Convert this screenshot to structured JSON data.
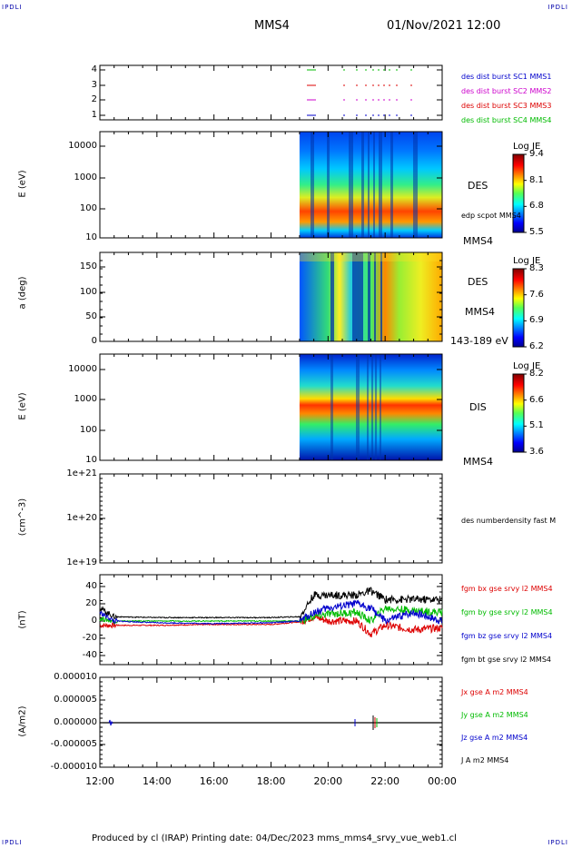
{
  "corner_labels": {
    "left_top": "IPDLI",
    "right_top": "IPDLI",
    "left_bottom": "IPDLI",
    "right_bottom": "IPDLI"
  },
  "header": {
    "spacecraft": "MMS4",
    "datetime": "01/Nov/2021 12:00"
  },
  "footer": {
    "text": "Produced by cl (IRAP)   Printing date: 04/Dec/2023   mms_mms4_srvy_vue_web1.cl"
  },
  "time_axis": {
    "ticks": [
      "12:00",
      "14:00",
      "16:00",
      "18:00",
      "20:00",
      "22:00",
      "00:00"
    ]
  },
  "panels": {
    "burst": {
      "yticks": [
        "4",
        "3",
        "2",
        "1"
      ],
      "labels": [
        {
          "text": "des dist burst SC1 MMS1",
          "color": "#0000cc"
        },
        {
          "text": "des dist burst SC2 MMS2",
          "color": "#cc00cc"
        },
        {
          "text": "des dist burst SC3 MMS3",
          "color": "#dd0000"
        },
        {
          "text": "des dist burst SC4 MMS4",
          "color": "#00bb00"
        }
      ]
    },
    "des_energy": {
      "ylabel": "E (eV)",
      "yticks": [
        "10000",
        "1000",
        "100",
        "10"
      ],
      "name": "DES",
      "sc": "MMS4",
      "overlay": "edp scpot MMS4",
      "cb": {
        "title": "Log JE",
        "ticks": [
          "9.4",
          "8.1",
          "6.8",
          "5.5"
        ]
      }
    },
    "des_pitch": {
      "ylabel": "a (deg)",
      "yticks": [
        "150",
        "100",
        "50",
        "0"
      ],
      "name": "DES",
      "sc": "MMS4",
      "range": "143-189 eV",
      "cb": {
        "title": "Log JE",
        "ticks": [
          "8.3",
          "7.6",
          "6.9",
          "6.2"
        ]
      }
    },
    "dis_energy": {
      "ylabel": "E (eV)",
      "yticks": [
        "10000",
        "1000",
        "100",
        "10"
      ],
      "name": "DIS",
      "sc": "MMS4",
      "cb": {
        "title": "Log JE",
        "ticks": [
          "8.2",
          "6.6",
          "5.1",
          "3.6"
        ]
      }
    },
    "density": {
      "ylabel": "(cm^-3)",
      "yticks": [
        "1e+21",
        "1e+20",
        "1e+19"
      ],
      "label": "des numberdensity fast M"
    },
    "bfield": {
      "ylabel": "(nT)",
      "yticks": [
        "40",
        "20",
        "0",
        "-20",
        "-40"
      ],
      "labels": [
        {
          "text": "fgm bx gse srvy l2 MMS4",
          "color": "#dd0000"
        },
        {
          "text": "fgm by gse srvy l2 MMS4",
          "color": "#00bb00"
        },
        {
          "text": "fgm bz gse srvy l2 MMS4",
          "color": "#0000cc"
        },
        {
          "text": "fgm bt gse srvy l2 MMS4",
          "color": "#000000"
        }
      ]
    },
    "current": {
      "ylabel": "(A/m2)",
      "yticks": [
        "0.000010",
        "0.000005",
        "0.000000",
        "-0.000005",
        "-0.000010"
      ],
      "labels": [
        {
          "text": "Jx gse A m2 MMS4",
          "color": "#dd0000"
        },
        {
          "text": "Jy gse A m2 MMS4",
          "color": "#00bb00"
        },
        {
          "text": "Jz gse A m2 MMS4",
          "color": "#0000cc"
        },
        {
          "text": "J A m2 MMS4",
          "color": "#000000"
        }
      ]
    }
  },
  "chart_data": [
    {
      "type": "scatter",
      "title": "des dist burst",
      "y_categories": [
        "1",
        "2",
        "3",
        "4"
      ],
      "x_range": [
        "19:10",
        "22:50"
      ],
      "ylim": [
        0.5,
        4.5
      ]
    },
    {
      "type": "heatmap",
      "ylabel": "E (eV)",
      "yscale": "log",
      "ylim": [
        10,
        30000
      ],
      "x_range": [
        "19:00",
        "00:00"
      ],
      "colorbar": "Log JE",
      "cbar_range": [
        5.5,
        9.4
      ],
      "peak_energy_eV": 60
    },
    {
      "type": "heatmap",
      "ylabel": "a (deg)",
      "ylim": [
        0,
        180
      ],
      "x_range": [
        "19:00",
        "00:00"
      ],
      "colorbar": "Log JE",
      "cbar_range": [
        6.2,
        8.3
      ]
    },
    {
      "type": "heatmap",
      "ylabel": "E (eV)",
      "yscale": "log",
      "ylim": [
        10,
        30000
      ],
      "x_range": [
        "19:00",
        "00:00"
      ],
      "colorbar": "Log JE",
      "cbar_range": [
        3.6,
        8.2
      ],
      "peak_energy_eV": 700
    },
    {
      "type": "line",
      "ylabel": "(cm^-3)",
      "yscale": "log",
      "ylim": [
        1e+19,
        1e+21
      ],
      "series": []
    },
    {
      "type": "line",
      "ylabel": "(nT)",
      "ylim": [
        -50,
        50
      ],
      "x": [
        "12:00",
        "12:30",
        "14:00",
        "16:00",
        "18:00",
        "19:00",
        "19:30",
        "20:00",
        "21:00",
        "21:30",
        "22:00",
        "23:00",
        "00:00"
      ],
      "series": [
        {
          "name": "fgm bx gse srvy l2 MMS4",
          "values": [
            -5,
            -5,
            -5,
            -4,
            -4,
            -1,
            5,
            0,
            0,
            -15,
            -5,
            -10,
            -8
          ]
        },
        {
          "name": "fgm by gse srvy l2 MMS4",
          "values": [
            3,
            0,
            0,
            0,
            0,
            0,
            5,
            8,
            10,
            0,
            15,
            12,
            10
          ]
        },
        {
          "name": "fgm bz gse srvy l2 MMS4",
          "values": [
            10,
            0,
            -2,
            -3,
            -2,
            0,
            10,
            15,
            20,
            15,
            0,
            10,
            0
          ]
        },
        {
          "name": "fgm bt gse srvy l2 MMS4",
          "values": [
            15,
            5,
            4,
            4,
            4,
            5,
            30,
            30,
            30,
            35,
            25,
            25,
            25
          ]
        }
      ]
    },
    {
      "type": "line",
      "ylabel": "(A/m2)",
      "ylim": [
        -1e-05,
        1e-05
      ],
      "x": [
        "12:00",
        "12:30",
        "16:00",
        "20:00",
        "21:00",
        "21:30",
        "21:40",
        "22:00",
        "00:00"
      ],
      "series": [
        {
          "name": "J A m2 MMS4",
          "values": [
            0,
            0,
            0,
            0,
            0,
            5e-07,
            1e-06,
            0,
            0
          ]
        }
      ]
    }
  ],
  "colors": {
    "text": "#000000",
    "corner": "#0000aa",
    "spectrogram_fill": "#0000aa"
  }
}
